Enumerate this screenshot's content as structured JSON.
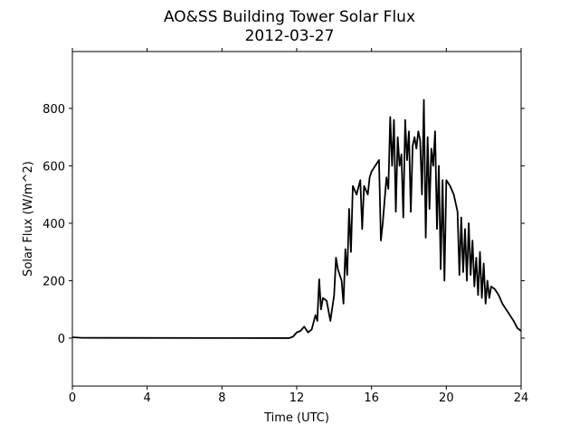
{
  "chart_data": {
    "type": "line",
    "title": "AO&SS Building Tower Solar Flux",
    "subtitle": "2012-03-27",
    "x_label": "Time (UTC)",
    "y_label": "Solar Flux (W/m^2)",
    "color": "#000000",
    "x": [
      0,
      0.5,
      11.6,
      11.8,
      12.0,
      12.2,
      12.4,
      12.6,
      12.8,
      13.0,
      13.1,
      13.2,
      13.3,
      13.4,
      13.6,
      13.8,
      14.0,
      14.1,
      14.2,
      14.4,
      14.5,
      14.6,
      14.7,
      14.8,
      14.9,
      15.0,
      15.2,
      15.4,
      15.5,
      15.6,
      15.8,
      15.9,
      16.0,
      16.2,
      16.4,
      16.5,
      16.6,
      16.8,
      16.9,
      17.0,
      17.1,
      17.2,
      17.3,
      17.4,
      17.5,
      17.6,
      17.7,
      17.8,
      17.9,
      18.0,
      18.1,
      18.2,
      18.3,
      18.4,
      18.5,
      18.6,
      18.7,
      18.8,
      18.9,
      19.0,
      19.1,
      19.2,
      19.3,
      19.4,
      19.5,
      19.6,
      19.7,
      19.8,
      19.9,
      20.0,
      20.2,
      20.4,
      20.6,
      20.7,
      20.8,
      20.9,
      21.0,
      21.1,
      21.2,
      21.3,
      21.4,
      21.5,
      21.6,
      21.7,
      21.8,
      21.9,
      22.0,
      22.1,
      22.2,
      22.3,
      22.4,
      22.6,
      22.8,
      23.0,
      23.2,
      23.4,
      23.6,
      23.8,
      24.0
    ],
    "values": [
      3,
      1,
      0,
      5,
      20,
      25,
      40,
      20,
      30,
      80,
      60,
      205,
      100,
      140,
      130,
      60,
      150,
      280,
      240,
      200,
      120,
      310,
      220,
      450,
      300,
      530,
      500,
      550,
      380,
      530,
      500,
      560,
      580,
      600,
      620,
      340,
      400,
      560,
      520,
      770,
      600,
      760,
      440,
      700,
      600,
      640,
      420,
      760,
      620,
      720,
      440,
      670,
      700,
      660,
      720,
      690,
      500,
      830,
      350,
      700,
      450,
      660,
      600,
      720,
      380,
      600,
      240,
      550,
      200,
      550,
      530,
      500,
      440,
      220,
      420,
      230,
      380,
      200,
      400,
      220,
      340,
      180,
      280,
      150,
      300,
      140,
      260,
      120,
      200,
      140,
      180,
      170,
      150,
      120,
      100,
      80,
      60,
      35,
      25
    ],
    "xlim": [
      0,
      24
    ],
    "xticks": [
      0,
      4,
      8,
      12,
      16,
      20,
      24
    ],
    "ylim": [
      -167,
      998
    ],
    "yticks": [
      0,
      200,
      400,
      600,
      800
    ]
  }
}
